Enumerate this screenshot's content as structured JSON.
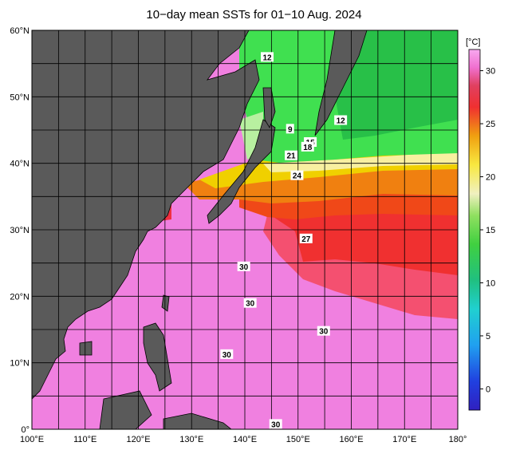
{
  "title": "10−day mean SSTs for 01−10 Aug. 2024",
  "colorbar": {
    "unit": "[°C]",
    "ticks": [
      "30",
      "25",
      "20",
      "15",
      "10",
      "5",
      "0"
    ]
  },
  "axes": {
    "lat_labels": [
      "60°N",
      "50°N",
      "40°N",
      "30°N",
      "20°N",
      "10°N",
      "0°"
    ],
    "lon_labels": [
      "100°E",
      "110°E",
      "120°E",
      "130°E",
      "140°E",
      "150°E",
      "160°E",
      "170°E",
      "180°"
    ]
  },
  "contour_labels": [
    {
      "text": "12",
      "lon": 144.2,
      "lat": 56.0
    },
    {
      "text": "12",
      "lon": 158.0,
      "lat": 46.5
    },
    {
      "text": "9",
      "lon": 148.5,
      "lat": 45.2
    },
    {
      "text": "15",
      "lon": 152.3,
      "lat": 43.2
    },
    {
      "text": "18",
      "lon": 151.8,
      "lat": 42.5
    },
    {
      "text": "21",
      "lon": 148.7,
      "lat": 41.2
    },
    {
      "text": "24",
      "lon": 149.8,
      "lat": 38.2
    },
    {
      "text": "27",
      "lon": 151.5,
      "lat": 28.7
    },
    {
      "text": "30",
      "lon": 139.8,
      "lat": 24.5
    },
    {
      "text": "30",
      "lon": 141.0,
      "lat": 19.0
    },
    {
      "text": "30",
      "lon": 154.8,
      "lat": 14.8
    },
    {
      "text": "30",
      "lon": 136.6,
      "lat": 11.3
    },
    {
      "text": "30",
      "lon": 145.8,
      "lat": 0.8
    }
  ],
  "colors": {
    "land": "#5a5a5a",
    "grid": "#000000",
    "sst_30plus": "#f080e0",
    "sst_28": "#f04040",
    "sst_26": "#f06010",
    "sst_24": "#f0a010",
    "sst_21": "#f0d800",
    "sst_18": "#f8f0a0",
    "sst_15": "#a8f090",
    "sst_12": "#40e060",
    "sst_10": "#30c050"
  }
}
